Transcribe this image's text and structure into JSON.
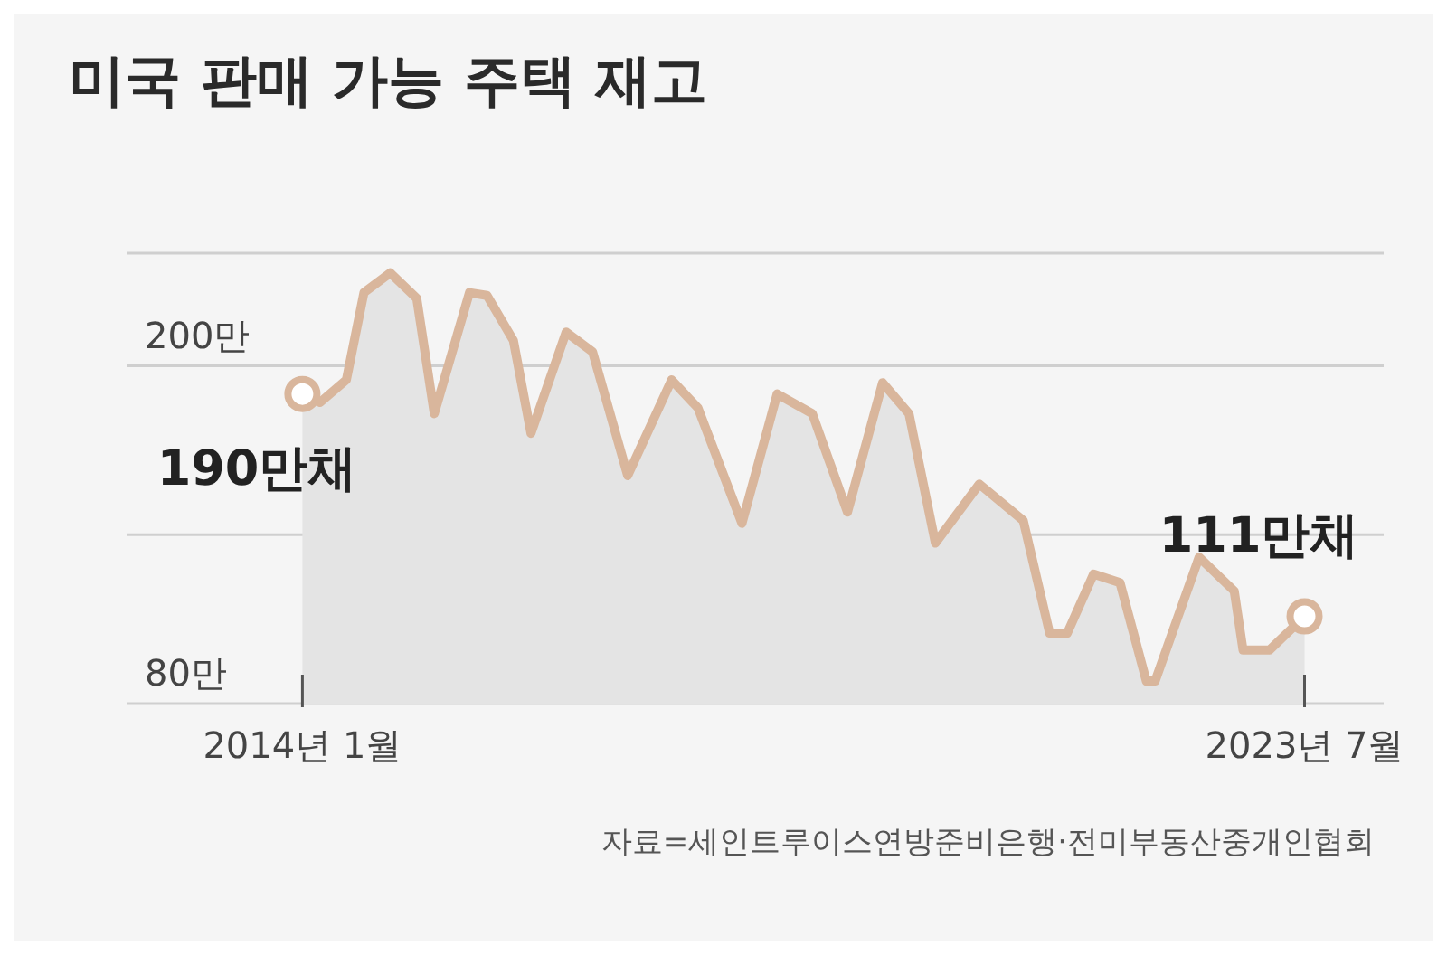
{
  "chart_data": {
    "type": "area",
    "title": "미국 판매 가능 주택 재고",
    "x": [
      "2014-01",
      "2014-03",
      "2014-06",
      "2014-08",
      "2014-11",
      "2015-02",
      "2015-04",
      "2015-08",
      "2015-10",
      "2016-01",
      "2016-03",
      "2016-07",
      "2016-10",
      "2017-02",
      "2017-07",
      "2017-10",
      "2018-03",
      "2018-07",
      "2018-11",
      "2019-03",
      "2019-07",
      "2019-10",
      "2020-01",
      "2020-06",
      "2020-11",
      "2021-02",
      "2021-04",
      "2021-07",
      "2021-10",
      "2022-01",
      "2022-02",
      "2022-07",
      "2022-11",
      "2022-12",
      "2023-03",
      "2023-07"
    ],
    "values": [
      190,
      187,
      195,
      226,
      233,
      224,
      183,
      226,
      225,
      209,
      176,
      212,
      205,
      161,
      195,
      185,
      144,
      190,
      183,
      148,
      194,
      183,
      137,
      158,
      145,
      105,
      105,
      126,
      123,
      88,
      88,
      132,
      120,
      99,
      99,
      111
    ],
    "color": "#d9b69c",
    "marker": "none",
    "line_style": "solid",
    "grid": "y",
    "xlim": [
      "2012-05",
      "2024-04"
    ],
    "xticks": [
      {
        "value": "2014-01",
        "label": "2014년 1월"
      },
      {
        "value": "2023-07",
        "label": "2023년 7월"
      }
    ],
    "ylim": [
      80,
      240
    ],
    "yticks": [
      {
        "value": 200,
        "label": "200만"
      },
      {
        "value": 140,
        "label": null
      },
      {
        "value": 80,
        "label": "80만"
      }
    ],
    "annotations": [
      {
        "text": "190만채",
        "x": "2014-01",
        "y": 190
      },
      {
        "text": "111만채",
        "x": "2023-07",
        "y": 111
      },
      "자료=세인트루이스연방준비은행·전미부동산중개인협회"
    ]
  }
}
